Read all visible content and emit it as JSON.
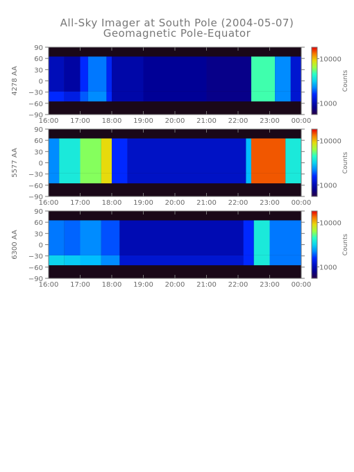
{
  "title": "All-Sky Imager at South Pole (2004-05-07)",
  "subtitle": "Geomagnetic Pole-Equator",
  "chart_data": [
    {
      "type": "heatmap",
      "ylabel": "4278 AA",
      "x_ticks": [
        "16:00",
        "17:00",
        "18:00",
        "19:00",
        "20:00",
        "21:00",
        "22:00",
        "23:00",
        "00:00"
      ],
      "y_ticks": [
        90,
        60,
        30,
        0,
        -30,
        -60,
        -90
      ],
      "xlim": [
        "16:00",
        "00:00"
      ],
      "ylim": [
        -90,
        90
      ],
      "colorbar": {
        "label": "Counts",
        "ticks": [
          "10000",
          "1000"
        ],
        "scale": "log"
      },
      "segments": [
        {
          "start": "16:00",
          "end": "16:30",
          "level": 0.18,
          "tail": 0.3
        },
        {
          "start": "16:30",
          "end": "17:00",
          "level": 0.14,
          "tail": 0.25
        },
        {
          "start": "17:00",
          "end": "17:15",
          "level": 0.3,
          "tail": 0.35
        },
        {
          "start": "17:15",
          "end": "17:50",
          "level": 0.38,
          "tail": 0.4
        },
        {
          "start": "17:50",
          "end": "18:00",
          "level": 0.28,
          "tail": 0.3
        },
        {
          "start": "18:00",
          "end": "19:00",
          "level": 0.15,
          "tail": 0.15
        },
        {
          "start": "19:00",
          "end": "21:00",
          "level": 0.12,
          "tail": 0.12
        },
        {
          "start": "21:00",
          "end": "22:25",
          "level": 0.1,
          "tail": 0.1
        },
        {
          "start": "22:25",
          "end": "23:10",
          "level": 0.62,
          "tail": 0.62
        },
        {
          "start": "23:10",
          "end": "23:40",
          "level": 0.4,
          "tail": 0.4
        },
        {
          "start": "23:40",
          "end": "00:00",
          "level": 0.22,
          "tail": 0.22
        }
      ]
    },
    {
      "type": "heatmap",
      "ylabel": "5577 AA",
      "x_ticks": [
        "16:00",
        "17:00",
        "18:00",
        "19:00",
        "20:00",
        "21:00",
        "22:00",
        "23:00",
        "00:00"
      ],
      "y_ticks": [
        90,
        60,
        30,
        0,
        -30,
        -60,
        -90
      ],
      "xlim": [
        "16:00",
        "00:00"
      ],
      "ylim": [
        -90,
        90
      ],
      "colorbar": {
        "label": "Counts",
        "ticks": [
          "10000",
          "1000"
        ],
        "scale": "log"
      },
      "segments": [
        {
          "start": "16:00",
          "end": "16:20",
          "level": 0.4,
          "tail": 0.4
        },
        {
          "start": "16:20",
          "end": "17:00",
          "level": 0.55,
          "tail": 0.55
        },
        {
          "start": "17:00",
          "end": "17:40",
          "level": 0.68,
          "tail": 0.68
        },
        {
          "start": "17:40",
          "end": "18:00",
          "level": 0.8,
          "tail": 0.8
        },
        {
          "start": "18:00",
          "end": "18:30",
          "level": 0.3,
          "tail": 0.3
        },
        {
          "start": "18:30",
          "end": "22:15",
          "level": 0.2,
          "tail": 0.2
        },
        {
          "start": "22:15",
          "end": "22:25",
          "level": 0.45,
          "tail": 0.45
        },
        {
          "start": "22:25",
          "end": "23:30",
          "level": 0.93,
          "tail": 0.93
        },
        {
          "start": "23:30",
          "end": "00:00",
          "level": 0.55,
          "tail": 0.55
        }
      ]
    },
    {
      "type": "heatmap",
      "ylabel": "6300 AA",
      "x_ticks": [
        "16:00",
        "17:00",
        "18:00",
        "19:00",
        "20:00",
        "21:00",
        "22:00",
        "23:00",
        "00:00"
      ],
      "y_ticks": [
        90,
        60,
        30,
        0,
        -30,
        -60,
        -90
      ],
      "xlim": [
        "16:00",
        "00:00"
      ],
      "ylim": [
        -90,
        90
      ],
      "colorbar": {
        "label": "Counts",
        "ticks": [
          "10000",
          "1000"
        ],
        "scale": "log"
      },
      "segments": [
        {
          "start": "16:00",
          "end": "16:30",
          "level": 0.38,
          "tail": 0.5
        },
        {
          "start": "16:30",
          "end": "17:00",
          "level": 0.36,
          "tail": 0.48
        },
        {
          "start": "17:00",
          "end": "17:40",
          "level": 0.4,
          "tail": 0.45
        },
        {
          "start": "17:40",
          "end": "18:15",
          "level": 0.34,
          "tail": 0.4
        },
        {
          "start": "18:15",
          "end": "22:10",
          "level": 0.17,
          "tail": 0.22
        },
        {
          "start": "22:10",
          "end": "22:30",
          "level": 0.3,
          "tail": 0.3
        },
        {
          "start": "22:30",
          "end": "23:00",
          "level": 0.55,
          "tail": 0.55
        },
        {
          "start": "23:00",
          "end": "00:00",
          "level": 0.38,
          "tail": 0.38
        }
      ]
    }
  ]
}
